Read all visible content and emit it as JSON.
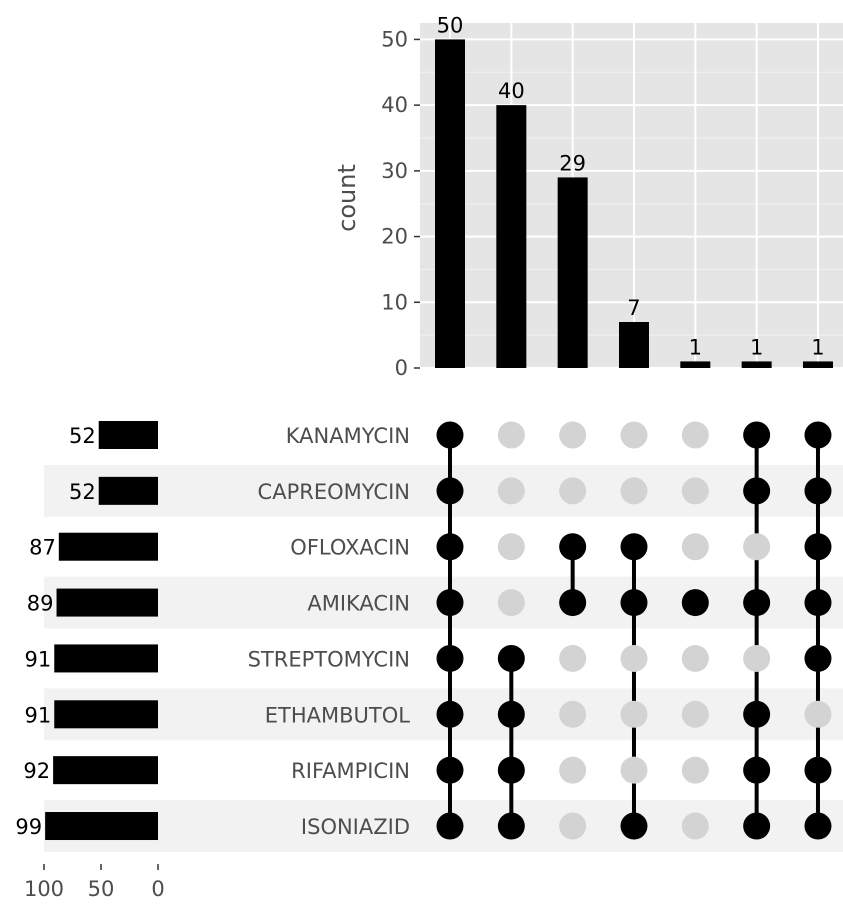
{
  "chart_data": {
    "type": "bar",
    "subtype": "upset",
    "sets": [
      "KANAMYCIN",
      "CAPREOMYCIN",
      "OFLOXACIN",
      "AMIKACIN",
      "STREPTOMYCIN",
      "ETHAMBUTOL",
      "RIFAMPICIN",
      "ISONIAZID"
    ],
    "set_sizes": [
      52,
      52,
      87,
      89,
      91,
      91,
      92,
      99
    ],
    "intersections": [
      {
        "count": 50,
        "members": [
          "KANAMYCIN",
          "CAPREOMYCIN",
          "OFLOXACIN",
          "AMIKACIN",
          "STREPTOMYCIN",
          "ETHAMBUTOL",
          "RIFAMPICIN",
          "ISONIAZID"
        ]
      },
      {
        "count": 40,
        "members": [
          "STREPTOMYCIN",
          "ETHAMBUTOL",
          "RIFAMPICIN",
          "ISONIAZID"
        ]
      },
      {
        "count": 29,
        "members": [
          "OFLOXACIN",
          "AMIKACIN"
        ]
      },
      {
        "count": 7,
        "members": [
          "OFLOXACIN",
          "AMIKACIN",
          "ISONIAZID"
        ]
      },
      {
        "count": 1,
        "members": [
          "AMIKACIN"
        ]
      },
      {
        "count": 1,
        "members": [
          "KANAMYCIN",
          "CAPREOMYCIN",
          "AMIKACIN",
          "ETHAMBUTOL",
          "RIFAMPICIN",
          "ISONIAZID"
        ]
      },
      {
        "count": 1,
        "members": [
          "KANAMYCIN",
          "CAPREOMYCIN",
          "OFLOXACIN",
          "AMIKACIN",
          "STREPTOMYCIN",
          "RIFAMPICIN",
          "ISONIAZID"
        ]
      }
    ],
    "ylabel": "count",
    "ylim": [
      0,
      52.5
    ],
    "y_ticks": [
      0,
      10,
      20,
      30,
      40,
      50
    ],
    "set_size_ticks": [
      100,
      50,
      0
    ],
    "set_size_xlim": [
      100,
      0
    ],
    "grid": true,
    "colors": {
      "bar": "#000000",
      "panel_bg": "#e5e5e5",
      "stripe": "#f2f2f2",
      "dot_inactive": "#d3d3d3",
      "dot_active": "#000000"
    }
  }
}
